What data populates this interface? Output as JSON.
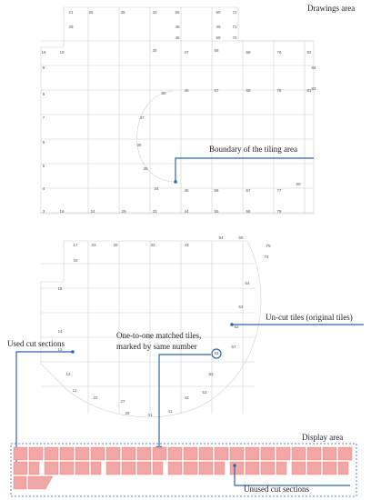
{
  "annotations": {
    "drawings_area": "Drawings area",
    "boundary": "Boundary of the tiling area",
    "uncut": "Un-cut tiles (original tiles)",
    "used": "Used cut sections",
    "matched_1": "One-to-one matched tiles,",
    "matched_2": "marked by same number",
    "display_area": "Display area",
    "unused": "Unused cut sections"
  },
  "tile_labels": [
    "21",
    "25",
    "35",
    "43",
    "55",
    "80",
    "72",
    "28",
    "48",
    "49",
    "71",
    "46",
    "69",
    "70",
    "16",
    "19",
    "30",
    "47",
    "58",
    "68",
    "76",
    "82",
    "9",
    "84",
    "8",
    "50",
    "46",
    "57",
    "68",
    "78",
    "81",
    "83",
    "7",
    "37",
    "6",
    "36",
    "5",
    "35",
    "4",
    "34",
    "45",
    "56",
    "67",
    "77",
    "80",
    "3",
    "16",
    "24",
    "29",
    "33",
    "44",
    "55",
    "66",
    "79",
    "17",
    "23",
    "28",
    "32",
    "43",
    "54",
    "65",
    "75",
    "74",
    "18",
    "15",
    "64",
    "63",
    "14",
    "13",
    "62",
    "61",
    "57",
    "12",
    "52",
    "11",
    "53",
    "22",
    "27",
    "42",
    "26",
    "31",
    "41"
  ]
}
